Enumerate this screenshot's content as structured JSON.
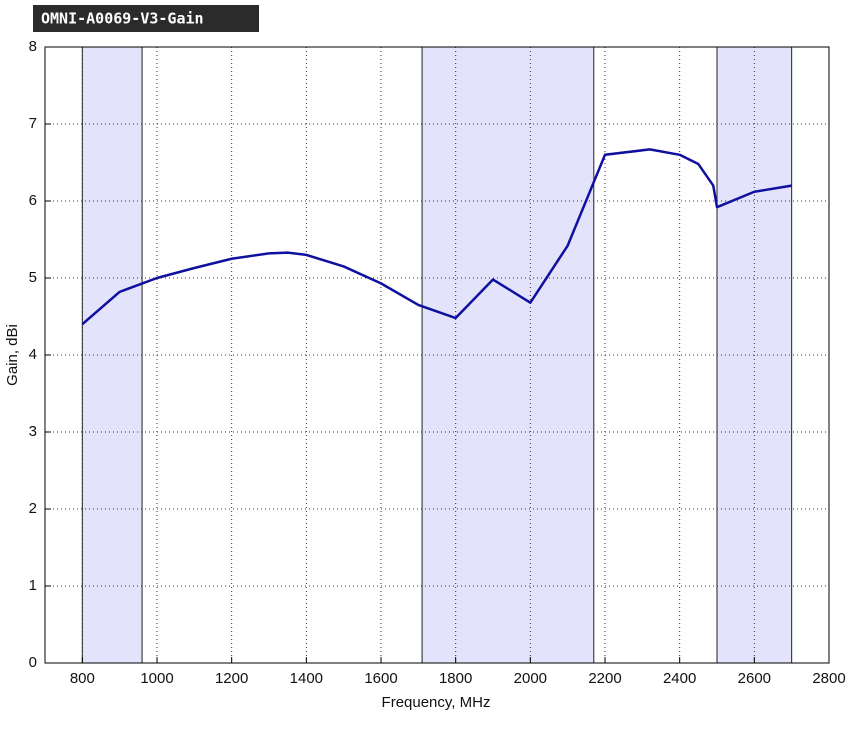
{
  "chart_data": {
    "type": "line",
    "title": "OMNI-A0069-V3-Gain",
    "x_label": "Frequency, MHz",
    "y_label": "Gain, dBi",
    "x": [
      800,
      900,
      1000,
      1100,
      1200,
      1300,
      1350,
      1400,
      1500,
      1600,
      1700,
      1800,
      1900,
      2000,
      2100,
      2200,
      2320,
      2400,
      2450,
      2490,
      2500,
      2600,
      2700
    ],
    "series": [
      {
        "name": "Gain",
        "color": "#1010a0",
        "values": [
          4.4,
          4.82,
          5.0,
          5.13,
          5.25,
          5.32,
          5.33,
          5.3,
          5.15,
          4.93,
          4.65,
          4.48,
          4.98,
          4.68,
          5.42,
          6.6,
          6.67,
          6.6,
          6.48,
          6.2,
          5.92,
          6.12,
          6.2
        ]
      }
    ],
    "bands": [
      [
        800,
        960
      ],
      [
        1710,
        2170
      ],
      [
        2500,
        2700
      ]
    ],
    "band_color": "#e3e3fb",
    "xlim": [
      700,
      2800
    ],
    "xticks": [
      800,
      1000,
      1200,
      1400,
      1600,
      1800,
      2000,
      2200,
      2400,
      2600,
      2800
    ],
    "ylim": [
      0,
      8
    ],
    "yticks": [
      0,
      1,
      2,
      3,
      4,
      5,
      6,
      7,
      8
    ],
    "grid": true
  }
}
